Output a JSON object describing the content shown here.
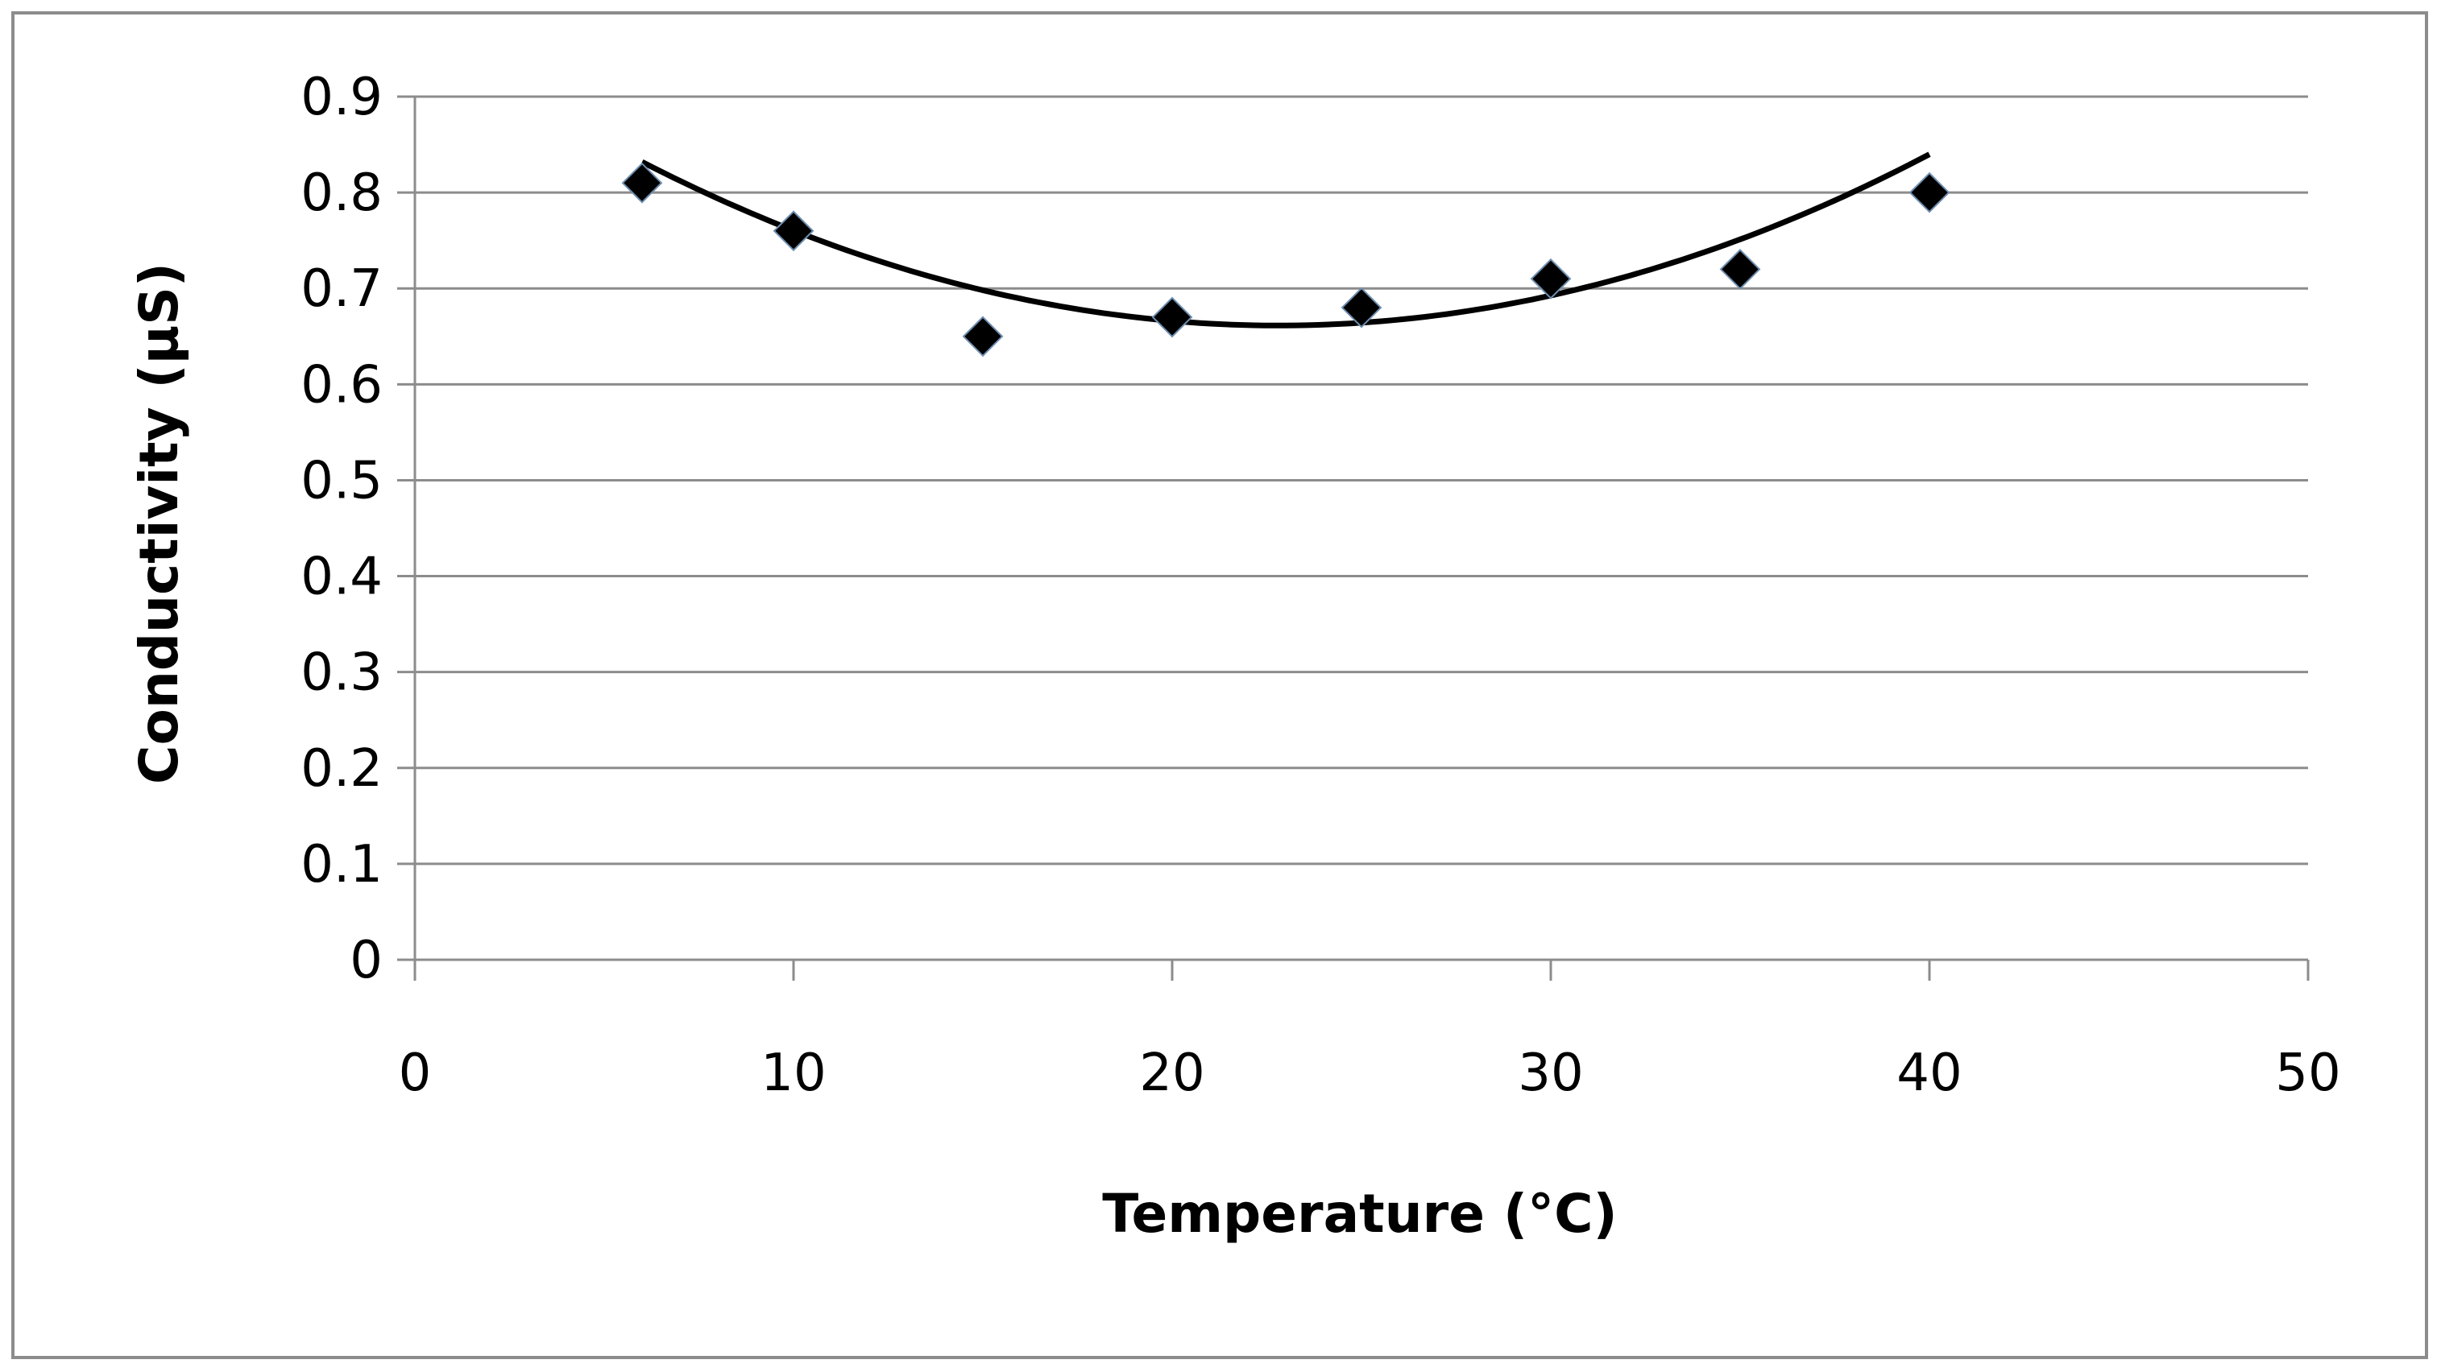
{
  "chart_data": {
    "type": "scatter",
    "title": "",
    "xlabel": "Temperature (°C)",
    "ylabel": "Conductivity (µS)",
    "xlim": [
      0,
      50
    ],
    "ylim": [
      0,
      0.9
    ],
    "x_ticks": [
      0,
      10,
      20,
      30,
      40,
      50
    ],
    "y_ticks": [
      0,
      0.1,
      0.2,
      0.3,
      0.4,
      0.5,
      0.6,
      0.7,
      0.8,
      0.9
    ],
    "grid": "horizontal",
    "legend": "none",
    "series": [
      {
        "name": "Conductivity",
        "marker": "diamond",
        "x": [
          6,
          10,
          15,
          20,
          25,
          30,
          35,
          40
        ],
        "y": [
          0.81,
          0.76,
          0.65,
          0.67,
          0.68,
          0.71,
          0.72,
          0.8
        ]
      }
    ],
    "trendline": {
      "type": "polynomial-2",
      "x_range": [
        6,
        40
      ],
      "coefficients": [
        0.9755,
        -0.02755,
        0.000604
      ]
    }
  },
  "colors": {
    "marker": "#000000",
    "trendline": "#000000",
    "grid": "#8c8c8c",
    "axis": "#8c8c8c",
    "frame": "#8c8c8c"
  }
}
